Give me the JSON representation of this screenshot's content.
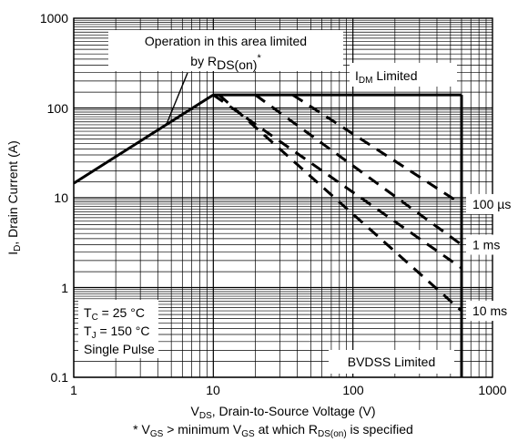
{
  "chart_data": {
    "type": "line",
    "xscale": "log",
    "yscale": "log",
    "xlim": [
      1,
      1000
    ],
    "ylim": [
      0.1,
      1000
    ],
    "grid": true,
    "x_ticks": [
      "1",
      "10",
      "100",
      "1000"
    ],
    "y_ticks": [
      "1000",
      "100",
      "10",
      "1",
      "0.1"
    ],
    "xlabel": {
      "main": "V",
      "sub": "DS",
      "rest": ", Drain-to-Source Voltage (V)"
    },
    "ylabel": {
      "main": "I",
      "sub": "D",
      "rest": ", Drain Current (A)"
    },
    "footnote": {
      "p1": "* V",
      "s1": "GS",
      "p2": " > minimum V",
      "s2": "GS",
      "p3": " at which R",
      "s3": "DS(on)",
      "p4": " is specified"
    },
    "conditions": [
      {
        "main": "T",
        "sub": "C",
        "rest": " = 25 °C"
      },
      {
        "main": "T",
        "sub": "J",
        "rest": " = 150 °C"
      },
      {
        "main": "Single Pulse",
        "sub": "",
        "rest": ""
      }
    ],
    "annotations": {
      "rds_line1": "Operation in this area limited",
      "rds_line2_pre": "by R",
      "rds_line2_sub": "DS(on)",
      "rds_line2_sup": "*",
      "idm_main": "I",
      "idm_sub": "DM",
      "idm_rest": " Limited",
      "bvdss": "BVDSS Limited"
    },
    "series": [
      {
        "name": "",
        "style": "solid",
        "points": [
          [
            1,
            14.5
          ],
          [
            10,
            140
          ]
        ]
      },
      {
        "name": "",
        "style": "solid",
        "points": [
          [
            10,
            140
          ],
          [
            600,
            140
          ]
        ]
      },
      {
        "name": "",
        "style": "solid",
        "points": [
          [
            600,
            140
          ],
          [
            600,
            0.1
          ]
        ]
      },
      {
        "name": "100 µs",
        "style": "dashed",
        "points": [
          [
            37,
            140
          ],
          [
            600,
            8.5
          ]
        ]
      },
      {
        "name": "1 ms",
        "style": "dashed",
        "points": [
          [
            20,
            140
          ],
          [
            600,
            3.0
          ]
        ]
      },
      {
        "name": "",
        "style": "dashed",
        "points": [
          [
            10,
            140
          ],
          [
            600,
            1.65
          ]
        ]
      },
      {
        "name": "10 ms",
        "style": "dashed",
        "points": [
          [
            11,
            140
          ],
          [
            600,
            0.55
          ]
        ]
      }
    ],
    "series_labels": [
      {
        "text": "100 µs",
        "at_y": 8.5
      },
      {
        "text": "1 ms",
        "at_y": 3.0
      },
      {
        "text": "10 ms",
        "at_y": 0.55
      }
    ]
  }
}
